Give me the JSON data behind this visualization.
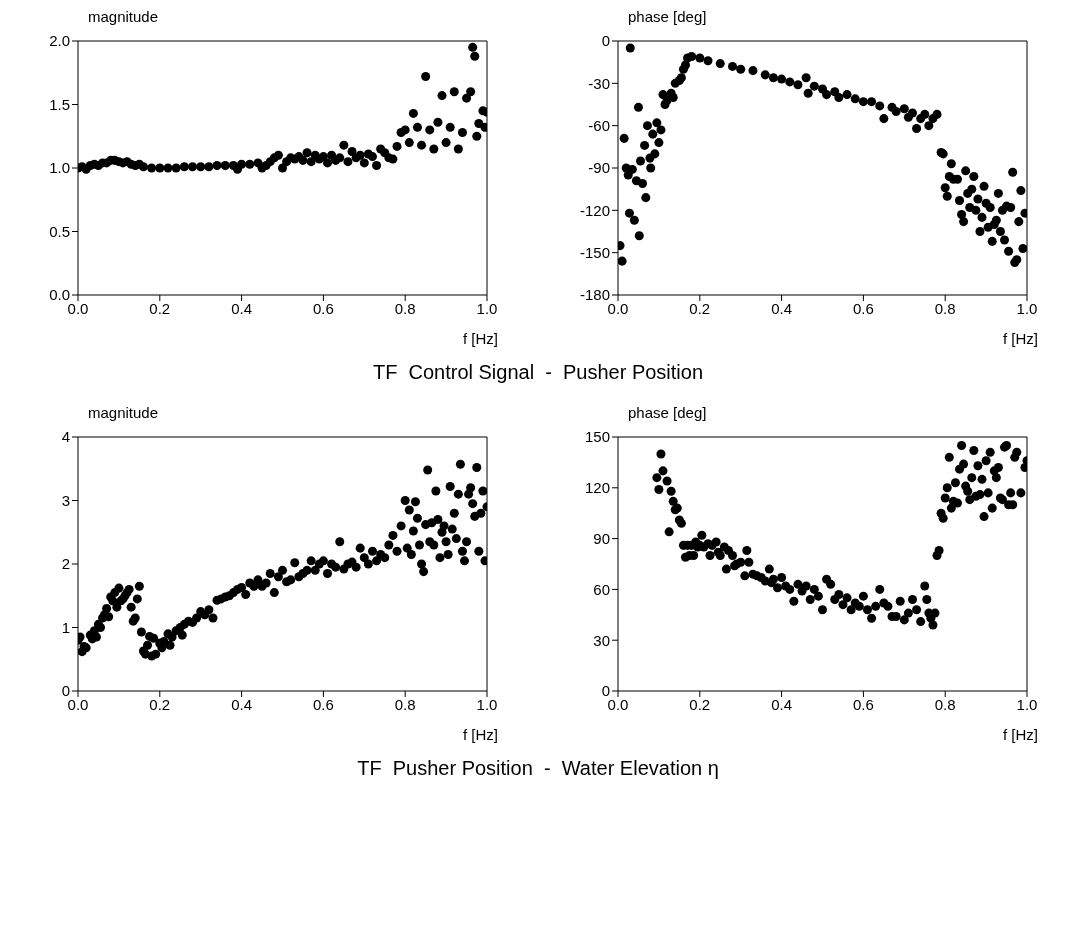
{
  "chart_data": [
    {
      "type": "scatter",
      "ylabel": "magnitude",
      "xlabel": "f [Hz]",
      "marker": "circle",
      "annotations": [
        "TF  Control Signal  -  Pusher Position"
      ],
      "xlim": [
        0,
        1
      ],
      "xticks": [
        {
          "value": 0,
          "label": "0.0"
        },
        {
          "value": 0.2,
          "label": "0.2"
        },
        {
          "value": 0.4,
          "label": "0.4"
        },
        {
          "value": 0.6,
          "label": "0.6"
        },
        {
          "value": 0.8,
          "label": "0.8"
        },
        {
          "value": 1,
          "label": "1.0"
        }
      ],
      "ylim": [
        0,
        2
      ],
      "yticks": [
        {
          "value": 0,
          "label": "0.0"
        },
        {
          "value": 0.5,
          "label": "0.5"
        },
        {
          "value": 1,
          "label": "1.0"
        },
        {
          "value": 1.5,
          "label": "1.5"
        },
        {
          "value": 2,
          "label": "2.0"
        }
      ],
      "series": [
        {
          "color": "#000000",
          "x": [
            0,
            0.01,
            0.02,
            0.03,
            0.04,
            0.05,
            0.06,
            0.07,
            0.08,
            0.09,
            0.1,
            0.11,
            0.12,
            0.13,
            0.14,
            0.15,
            0.16,
            0.18,
            0.2,
            0.22,
            0.24,
            0.26,
            0.28,
            0.3,
            0.32,
            0.34,
            0.36,
            0.38,
            0.39,
            0.4,
            0.42,
            0.44,
            0.45,
            0.46,
            0.47,
            0.48,
            0.49,
            0.5,
            0.51,
            0.52,
            0.53,
            0.54,
            0.55,
            0.56,
            0.57,
            0.58,
            0.59,
            0.6,
            0.61,
            0.62,
            0.63,
            0.64,
            0.65,
            0.66,
            0.67,
            0.68,
            0.69,
            0.7,
            0.71,
            0.72,
            0.73,
            0.74,
            0.75,
            0.76,
            0.77,
            0.78,
            0.79,
            0.8,
            0.81,
            0.82,
            0.83,
            0.84,
            0.85,
            0.86,
            0.87,
            0.88,
            0.89,
            0.9,
            0.91,
            0.92,
            0.93,
            0.94,
            0.95,
            0.96,
            0.965,
            0.97,
            0.975,
            0.98,
            0.99,
            0.995,
            1.0
          ],
          "values": [
            1.0,
            1.01,
            0.99,
            1.02,
            1.03,
            1.02,
            1.04,
            1.04,
            1.06,
            1.06,
            1.05,
            1.04,
            1.05,
            1.03,
            1.02,
            1.03,
            1.01,
            1.0,
            1.0,
            1.0,
            1.0,
            1.01,
            1.01,
            1.01,
            1.01,
            1.02,
            1.02,
            1.02,
            0.99,
            1.03,
            1.03,
            1.04,
            1.0,
            1.02,
            1.05,
            1.08,
            1.1,
            1.0,
            1.05,
            1.08,
            1.07,
            1.09,
            1.06,
            1.12,
            1.05,
            1.1,
            1.07,
            1.09,
            1.04,
            1.1,
            1.06,
            1.08,
            1.18,
            1.05,
            1.13,
            1.08,
            1.1,
            1.04,
            1.11,
            1.09,
            1.02,
            1.15,
            1.12,
            1.08,
            1.07,
            1.17,
            1.28,
            1.3,
            1.2,
            1.43,
            1.32,
            1.18,
            1.72,
            1.3,
            1.15,
            1.36,
            1.57,
            1.2,
            1.32,
            1.6,
            1.15,
            1.28,
            1.55,
            1.6,
            1.95,
            1.88,
            1.25,
            1.35,
            1.45,
            1.32,
            1.44
          ]
        }
      ]
    },
    {
      "type": "scatter",
      "ylabel": "phase [deg]",
      "xlabel": "f [Hz]",
      "marker": "circle",
      "xlim": [
        0,
        1
      ],
      "xticks": [
        {
          "value": 0,
          "label": "0.0"
        },
        {
          "value": 0.2,
          "label": "0.2"
        },
        {
          "value": 0.4,
          "label": "0.4"
        },
        {
          "value": 0.6,
          "label": "0.6"
        },
        {
          "value": 0.8,
          "label": "0.8"
        },
        {
          "value": 1,
          "label": "1.0"
        }
      ],
      "ylim": [
        -180,
        0
      ],
      "yticks": [
        -180,
        -150,
        -120,
        -90,
        -60,
        -30,
        0
      ],
      "series": [
        {
          "color": "#000000",
          "x": [
            0.005,
            0.01,
            0.015,
            0.02,
            0.025,
            0.028,
            0.03,
            0.035,
            0.04,
            0.045,
            0.05,
            0.052,
            0.055,
            0.06,
            0.065,
            0.068,
            0.072,
            0.078,
            0.08,
            0.085,
            0.09,
            0.095,
            0.1,
            0.105,
            0.11,
            0.115,
            0.12,
            0.13,
            0.135,
            0.14,
            0.15,
            0.155,
            0.16,
            0.165,
            0.17,
            0.18,
            0.2,
            0.22,
            0.25,
            0.28,
            0.3,
            0.33,
            0.36,
            0.38,
            0.4,
            0.42,
            0.44,
            0.46,
            0.465,
            0.48,
            0.5,
            0.51,
            0.53,
            0.54,
            0.56,
            0.58,
            0.6,
            0.62,
            0.64,
            0.65,
            0.67,
            0.68,
            0.7,
            0.71,
            0.72,
            0.73,
            0.74,
            0.75,
            0.76,
            0.77,
            0.78,
            0.79,
            0.795,
            0.8,
            0.805,
            0.81,
            0.815,
            0.82,
            0.83,
            0.835,
            0.84,
            0.845,
            0.85,
            0.855,
            0.86,
            0.865,
            0.87,
            0.875,
            0.88,
            0.885,
            0.89,
            0.895,
            0.9,
            0.905,
            0.91,
            0.915,
            0.92,
            0.925,
            0.93,
            0.935,
            0.94,
            0.945,
            0.95,
            0.955,
            0.96,
            0.965,
            0.97,
            0.975,
            0.98,
            0.985,
            0.99,
            0.995
          ],
          "values": [
            -145,
            -156,
            -69,
            -90,
            -95,
            -122,
            -5,
            -91,
            -127,
            -99,
            -47,
            -138,
            -85,
            -101,
            -74,
            -111,
            -60,
            -83,
            -90,
            -66,
            -80,
            -58,
            -72,
            -63,
            -38,
            -45,
            -42,
            -37,
            -40,
            -30,
            -28,
            -26,
            -20,
            -17,
            -12,
            -11,
            -12,
            -14,
            -16,
            -18,
            -20,
            -21,
            -24,
            -26,
            -27,
            -29,
            -31,
            -26,
            -37,
            -32,
            -34,
            -38,
            -36,
            -40,
            -38,
            -41,
            -43,
            -43,
            -46,
            -55,
            -47,
            -50,
            -48,
            -54,
            -51,
            -62,
            -55,
            -52,
            -60,
            -55,
            -52,
            -79,
            -80,
            -104,
            -110,
            -96,
            -87,
            -98,
            -98,
            -113,
            -123,
            -128,
            -92,
            -108,
            -118,
            -105,
            -96,
            -120,
            -112,
            -135,
            -125,
            -103,
            -115,
            -132,
            -118,
            -142,
            -130,
            -127,
            -108,
            -135,
            -120,
            -141,
            -117,
            -149,
            -118,
            -93,
            -157,
            -155,
            -128,
            -106,
            -147,
            -122
          ]
        }
      ]
    },
    {
      "type": "scatter",
      "ylabel": "magnitude",
      "xlabel": "f [Hz]",
      "marker": "circle",
      "annotations": [
        "TF  Pusher Position  -  Water Elevation η"
      ],
      "xlim": [
        0,
        1
      ],
      "xticks": [
        {
          "value": 0,
          "label": "0.0"
        },
        {
          "value": 0.2,
          "label": "0.2"
        },
        {
          "value": 0.4,
          "label": "0.4"
        },
        {
          "value": 0.6,
          "label": "0.6"
        },
        {
          "value": 0.8,
          "label": "0.8"
        },
        {
          "value": 1,
          "label": "1.0"
        }
      ],
      "ylim": [
        0,
        4
      ],
      "yticks": [
        0,
        1,
        2,
        3,
        4
      ],
      "series": [
        {
          "color": "#000000",
          "x": [
            0,
            0.005,
            0.01,
            0.015,
            0.02,
            0.03,
            0.035,
            0.04,
            0.045,
            0.05,
            0.055,
            0.06,
            0.065,
            0.07,
            0.075,
            0.08,
            0.085,
            0.09,
            0.095,
            0.1,
            0.105,
            0.11,
            0.115,
            0.12,
            0.125,
            0.13,
            0.135,
            0.14,
            0.145,
            0.15,
            0.155,
            0.16,
            0.165,
            0.17,
            0.175,
            0.18,
            0.185,
            0.19,
            0.2,
            0.205,
            0.21,
            0.22,
            0.225,
            0.23,
            0.24,
            0.25,
            0.255,
            0.26,
            0.27,
            0.28,
            0.29,
            0.3,
            0.31,
            0.32,
            0.33,
            0.34,
            0.35,
            0.36,
            0.37,
            0.38,
            0.39,
            0.4,
            0.41,
            0.42,
            0.43,
            0.44,
            0.45,
            0.46,
            0.47,
            0.48,
            0.49,
            0.5,
            0.51,
            0.52,
            0.53,
            0.54,
            0.55,
            0.56,
            0.57,
            0.58,
            0.59,
            0.6,
            0.61,
            0.62,
            0.63,
            0.64,
            0.65,
            0.66,
            0.67,
            0.68,
            0.69,
            0.7,
            0.71,
            0.72,
            0.73,
            0.74,
            0.75,
            0.76,
            0.77,
            0.78,
            0.79,
            0.8,
            0.805,
            0.81,
            0.815,
            0.82,
            0.825,
            0.83,
            0.835,
            0.84,
            0.845,
            0.85,
            0.855,
            0.86,
            0.865,
            0.87,
            0.875,
            0.88,
            0.885,
            0.89,
            0.895,
            0.9,
            0.905,
            0.91,
            0.915,
            0.92,
            0.925,
            0.93,
            0.935,
            0.94,
            0.945,
            0.95,
            0.955,
            0.96,
            0.965,
            0.97,
            0.975,
            0.98,
            0.985,
            0.99,
            0.995,
            1.0
          ],
          "values": [
            0.8,
            0.85,
            0.62,
            0.7,
            0.68,
            0.88,
            0.82,
            0.95,
            0.85,
            1.05,
            1.0,
            1.15,
            1.2,
            1.3,
            1.17,
            1.48,
            1.42,
            1.55,
            1.32,
            1.62,
            1.42,
            1.45,
            1.5,
            1.55,
            1.6,
            1.32,
            1.1,
            1.15,
            1.45,
            1.65,
            0.93,
            0.63,
            0.58,
            0.72,
            0.86,
            0.55,
            0.83,
            0.58,
            0.75,
            0.68,
            0.78,
            0.9,
            0.72,
            0.85,
            0.95,
            1.0,
            0.88,
            1.05,
            1.1,
            1.08,
            1.15,
            1.25,
            1.2,
            1.28,
            1.15,
            1.43,
            1.45,
            1.48,
            1.5,
            1.55,
            1.6,
            1.63,
            1.52,
            1.7,
            1.65,
            1.75,
            1.65,
            1.7,
            1.85,
            1.55,
            1.8,
            1.9,
            1.72,
            1.75,
            2.02,
            1.8,
            1.85,
            1.9,
            2.05,
            1.9,
            2.0,
            2.05,
            1.85,
            2.0,
            1.95,
            2.35,
            1.92,
            2.0,
            2.03,
            1.95,
            2.25,
            2.1,
            2.0,
            2.2,
            2.05,
            2.15,
            2.1,
            2.3,
            2.45,
            2.2,
            2.6,
            3.0,
            2.25,
            2.85,
            2.15,
            2.52,
            2.98,
            2.72,
            2.3,
            2.0,
            1.88,
            2.62,
            3.48,
            2.35,
            2.65,
            2.3,
            3.15,
            2.7,
            2.1,
            2.5,
            2.6,
            2.35,
            2.15,
            3.22,
            2.55,
            2.8,
            2.4,
            3.1,
            3.57,
            2.2,
            2.05,
            2.35,
            3.1,
            3.2,
            2.95,
            2.75,
            3.52,
            2.2,
            2.8,
            3.15,
            2.05,
            2.9
          ]
        }
      ]
    },
    {
      "type": "scatter",
      "ylabel": "phase [deg]",
      "xlabel": "f [Hz]",
      "marker": "circle",
      "xlim": [
        0,
        1
      ],
      "xticks": [
        {
          "value": 0,
          "label": "0.0"
        },
        {
          "value": 0.2,
          "label": "0.2"
        },
        {
          "value": 0.4,
          "label": "0.4"
        },
        {
          "value": 0.6,
          "label": "0.6"
        },
        {
          "value": 0.8,
          "label": "0.8"
        },
        {
          "value": 1,
          "label": "1.0"
        }
      ],
      "ylim": [
        0,
        150
      ],
      "yticks": [
        0,
        30,
        60,
        90,
        120,
        150
      ],
      "series": [
        {
          "color": "#000000",
          "x": [
            0.095,
            0.1,
            0.105,
            0.11,
            0.12,
            0.125,
            0.13,
            0.135,
            0.14,
            0.145,
            0.15,
            0.155,
            0.16,
            0.165,
            0.17,
            0.175,
            0.18,
            0.185,
            0.19,
            0.195,
            0.2,
            0.205,
            0.21,
            0.22,
            0.225,
            0.23,
            0.24,
            0.245,
            0.25,
            0.26,
            0.265,
            0.27,
            0.28,
            0.285,
            0.29,
            0.3,
            0.31,
            0.315,
            0.32,
            0.33,
            0.34,
            0.35,
            0.36,
            0.37,
            0.375,
            0.38,
            0.39,
            0.4,
            0.41,
            0.42,
            0.43,
            0.44,
            0.45,
            0.46,
            0.47,
            0.48,
            0.49,
            0.5,
            0.51,
            0.52,
            0.53,
            0.54,
            0.55,
            0.56,
            0.57,
            0.58,
            0.59,
            0.6,
            0.61,
            0.62,
            0.63,
            0.64,
            0.65,
            0.66,
            0.67,
            0.68,
            0.69,
            0.7,
            0.71,
            0.72,
            0.73,
            0.74,
            0.75,
            0.755,
            0.76,
            0.765,
            0.77,
            0.775,
            0.78,
            0.785,
            0.79,
            0.795,
            0.8,
            0.805,
            0.81,
            0.815,
            0.82,
            0.825,
            0.83,
            0.835,
            0.84,
            0.845,
            0.85,
            0.855,
            0.86,
            0.865,
            0.87,
            0.875,
            0.88,
            0.885,
            0.89,
            0.895,
            0.9,
            0.905,
            0.91,
            0.915,
            0.92,
            0.925,
            0.93,
            0.935,
            0.94,
            0.945,
            0.95,
            0.955,
            0.96,
            0.965,
            0.97,
            0.975,
            0.985,
            0.995,
            1.0
          ],
          "values": [
            126,
            119,
            140,
            130,
            124,
            94,
            118,
            112,
            107,
            108,
            101,
            99,
            86,
            79,
            86,
            80,
            86,
            80,
            88,
            85,
            86,
            92,
            85,
            87,
            80,
            86,
            88,
            82,
            80,
            85,
            72,
            83,
            80,
            74,
            75,
            76,
            68,
            83,
            76,
            69,
            68,
            67,
            65,
            72,
            64,
            66,
            61,
            67,
            62,
            60,
            53,
            63,
            59,
            62,
            54,
            60,
            56,
            48,
            66,
            63,
            54,
            57,
            51,
            55,
            48,
            52,
            50,
            56,
            48,
            43,
            50,
            60,
            52,
            50,
            44,
            44,
            53,
            42,
            46,
            54,
            48,
            41,
            62,
            54,
            46,
            43,
            39,
            46,
            80,
            83,
            105,
            102,
            114,
            120,
            138,
            108,
            112,
            123,
            111,
            131,
            145,
            134,
            121,
            118,
            113,
            126,
            142,
            115,
            133,
            116,
            125,
            103,
            136,
            117,
            141,
            108,
            130,
            126,
            132,
            114,
            113,
            144,
            145,
            110,
            117,
            110,
            138,
            141,
            117,
            132,
            136
          ]
        }
      ]
    }
  ]
}
